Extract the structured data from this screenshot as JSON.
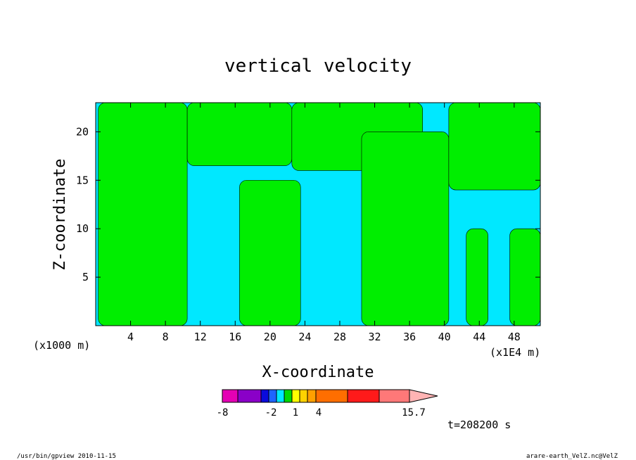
{
  "chart_data": {
    "type": "contour",
    "title": "vertical velocity",
    "xlabel": "X-coordinate",
    "ylabel": "Z-coordinate",
    "x_unit_label": "(x1000 m)",
    "x_scale_label": "(x1E4 m)",
    "xlim": [
      0,
      51
    ],
    "ylim": [
      0,
      23
    ],
    "x_ticks": [
      4,
      8,
      12,
      16,
      20,
      24,
      28,
      32,
      36,
      40,
      44,
      48
    ],
    "y_ticks": [
      5,
      10,
      15,
      20
    ],
    "colors": {
      "cyan": "#00e8ff",
      "green": "#00ee00"
    },
    "green_bands": [
      {
        "x0": 0.3,
        "x1": 10.5,
        "z0": 0,
        "z1": 23
      },
      {
        "x0": 10.5,
        "x1": 22.5,
        "z0": 16.5,
        "z1": 23
      },
      {
        "x0": 16.5,
        "x1": 23.5,
        "z0": 0,
        "z1": 15
      },
      {
        "x0": 22.5,
        "x1": 37.5,
        "z0": 16,
        "z1": 23
      },
      {
        "x0": 30.5,
        "x1": 40.5,
        "z0": 0,
        "z1": 20
      },
      {
        "x0": 40.5,
        "x1": 51,
        "z0": 14,
        "z1": 23
      },
      {
        "x0": 42.5,
        "x1": 45,
        "z0": 0,
        "z1": 10
      },
      {
        "x0": 47.5,
        "x1": 51,
        "z0": 0,
        "z1": 10
      }
    ],
    "colorbar": {
      "tick_labels": [
        "-8",
        "-2",
        "1",
        "4",
        "15.7"
      ],
      "colors": [
        "#e400b4",
        "#8a00c8",
        "#0a0adc",
        "#1e64ff",
        "#00e8ff",
        "#00d800",
        "#ffff00",
        "#ffd200",
        "#ffa000",
        "#ff6e00",
        "#ff1a1a",
        "#ff7878",
        "#ffb4b4"
      ]
    },
    "time_label": "t=208200 s"
  },
  "footer": {
    "left": "/usr/bin/gpview   2010-11-15",
    "right": "arare-earth_VelZ.nc@VelZ"
  }
}
